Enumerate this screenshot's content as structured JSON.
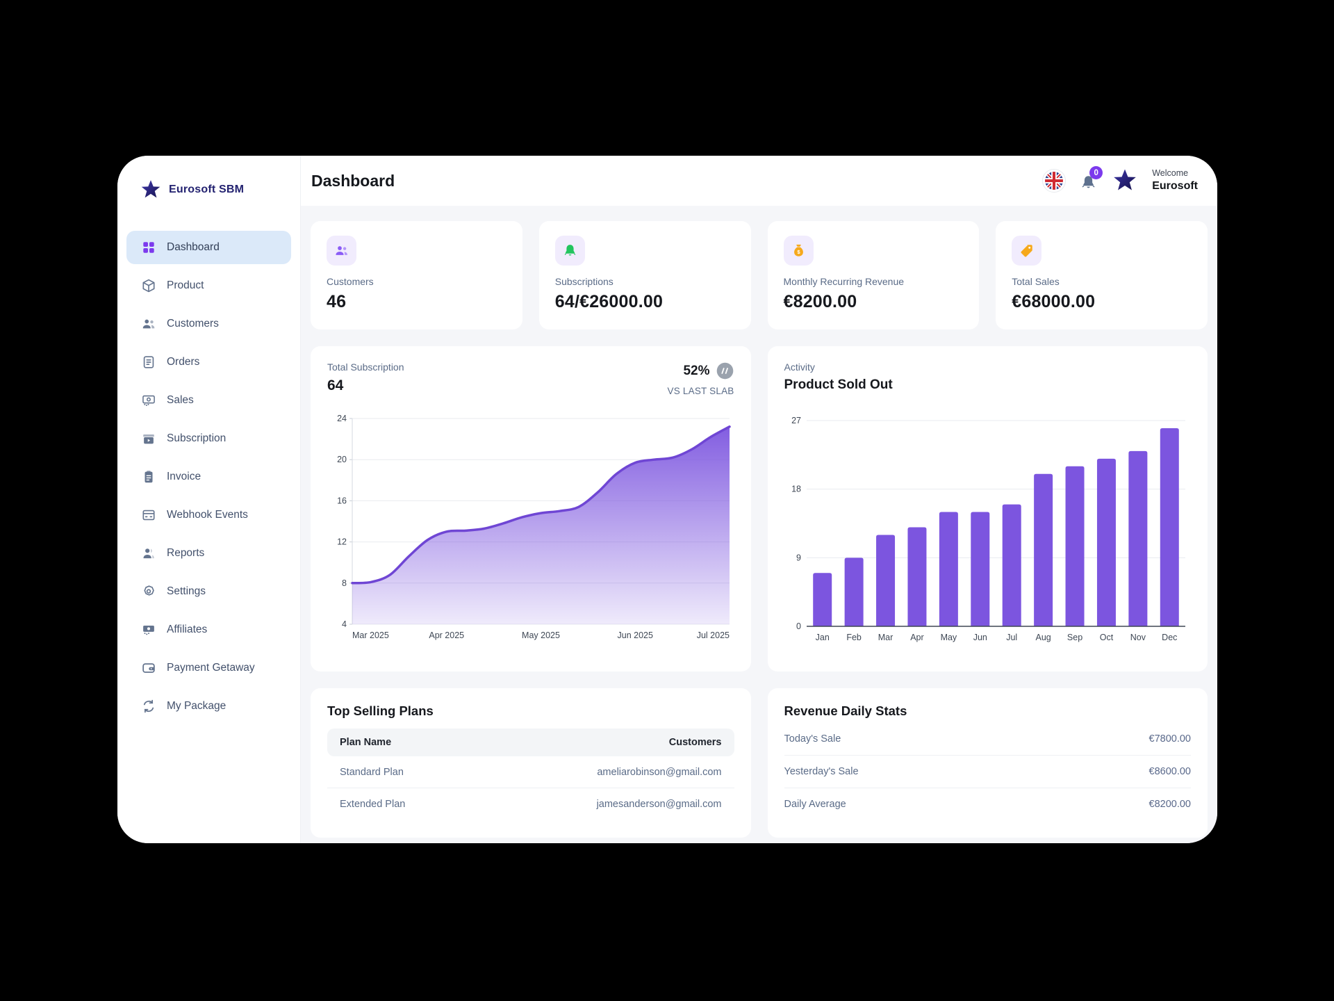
{
  "brand": {
    "name": "Eurosoft SBM",
    "logo_icon": "star-icon",
    "logo_color": "#232270"
  },
  "header": {
    "title": "Dashboard",
    "language_icon": "uk-flag-icon",
    "notification_icon": "bell-icon",
    "notification_count": "0",
    "profile_icon": "star-icon",
    "welcome_label": "Welcome",
    "welcome_name": "Eurosoft"
  },
  "sidebar": {
    "items": [
      {
        "label": "Dashboard",
        "icon": "dashboard-grid-icon",
        "active": true
      },
      {
        "label": "Product",
        "icon": "product-box-icon",
        "active": false
      },
      {
        "label": "Customers",
        "icon": "customers-icon",
        "active": false
      },
      {
        "label": "Orders",
        "icon": "orders-icon",
        "active": false
      },
      {
        "label": "Sales",
        "icon": "banknote-icon",
        "active": false
      },
      {
        "label": "Subscription",
        "icon": "subscription-box-icon",
        "active": false
      },
      {
        "label": "Invoice",
        "icon": "invoice-clipboard-icon",
        "active": false
      },
      {
        "label": "Webhook Events",
        "icon": "webhook-window-icon",
        "active": false
      },
      {
        "label": "Reports",
        "icon": "reports-person-icon",
        "active": false
      },
      {
        "label": "Settings",
        "icon": "settings-gear-icon",
        "active": false
      },
      {
        "label": "Affiliates",
        "icon": "affiliates-banknote-icon",
        "active": false
      },
      {
        "label": "Payment Getaway",
        "icon": "wallet-icon",
        "active": false
      },
      {
        "label": "My Package",
        "icon": "refresh-icon",
        "active": false
      }
    ]
  },
  "stat_cards": [
    {
      "label": "Customers",
      "value": "46",
      "icon": "users-icon",
      "icon_color": "#8b5cf6"
    },
    {
      "label": "Subscriptions",
      "value": "64/€26000.00",
      "icon": "bell-icon",
      "icon_color": "#22c55e"
    },
    {
      "label": "Monthly Recurring Revenue",
      "value": "€8200.00",
      "icon": "money-bag-icon",
      "icon_color": "#f6a91b"
    },
    {
      "label": "Total Sales",
      "value": "€68000.00",
      "icon": "tag-icon",
      "icon_color": "#f6a91b"
    }
  ],
  "subscription_panel": {
    "label": "Total Subscription",
    "value": "64",
    "percent": "52%",
    "percent_icon": "slash-circle-icon",
    "vs_label": "VS LAST SLAB"
  },
  "activity_panel": {
    "label": "Activity",
    "title": "Product Sold Out"
  },
  "top_selling": {
    "title": "Top Selling Plans",
    "columns": [
      "Plan Name",
      "Customers"
    ],
    "rows": [
      {
        "plan": "Standard Plan",
        "customer": "ameliarobinson@gmail.com"
      },
      {
        "plan": "Extended Plan",
        "customer": "jamesanderson@gmail.com"
      }
    ]
  },
  "revenue_stats": {
    "title": "Revenue Daily Stats",
    "rows": [
      {
        "label": "Today's Sale",
        "value": "€7800.00"
      },
      {
        "label": "Yesterday's Sale",
        "value": "€8600.00"
      },
      {
        "label": "Daily Average",
        "value": "€8200.00"
      }
    ]
  },
  "chart_data": [
    {
      "type": "area",
      "title": "Total Subscription",
      "current_value": 64,
      "change_percent": "52%",
      "comparison_label": "VS LAST SLAB",
      "x_tick_labels": [
        "Mar 2025",
        "Apr 2025",
        "May 2025",
        "Jun 2025",
        "Jul 2025"
      ],
      "monthly_values": [
        8,
        13,
        15,
        20,
        23
      ],
      "values": [
        8.0,
        8.1,
        8.8,
        10.6,
        12.2,
        13.0,
        13.1,
        13.3,
        13.8,
        14.4,
        14.8,
        15.0,
        15.4,
        16.8,
        18.6,
        19.7,
        20.0,
        20.2,
        21.0,
        22.2,
        23.2
      ],
      "y_ticks": [
        4,
        8,
        12,
        16,
        20,
        24
      ],
      "ylim": [
        4,
        24
      ],
      "grid": true,
      "legend": false,
      "line_color": "#6f46d4",
      "fill_color": "#7c55df"
    },
    {
      "type": "bar",
      "title": "Product Sold Out",
      "subtitle": "Activity",
      "categories": [
        "Jan",
        "Feb",
        "Mar",
        "Apr",
        "May",
        "Jun",
        "Jul",
        "Aug",
        "Sep",
        "Oct",
        "Nov",
        "Dec"
      ],
      "values": [
        7,
        9,
        12,
        13,
        15,
        15,
        16,
        20,
        21,
        22,
        23,
        26
      ],
      "y_ticks": [
        0,
        9,
        18,
        27
      ],
      "ylim": [
        0,
        27
      ],
      "grid": true,
      "legend": false,
      "bar_color": "#7c55df"
    }
  ],
  "colors": {
    "accent_purple": "#7c3aed",
    "chart_purple": "#7c55df",
    "active_item_bg": "#dbe9f9",
    "content_bg": "#f5f6f9",
    "slate_text": "#5a6b87",
    "dark_text": "#16181d",
    "green": "#22c55e",
    "orange": "#f6a91b"
  }
}
